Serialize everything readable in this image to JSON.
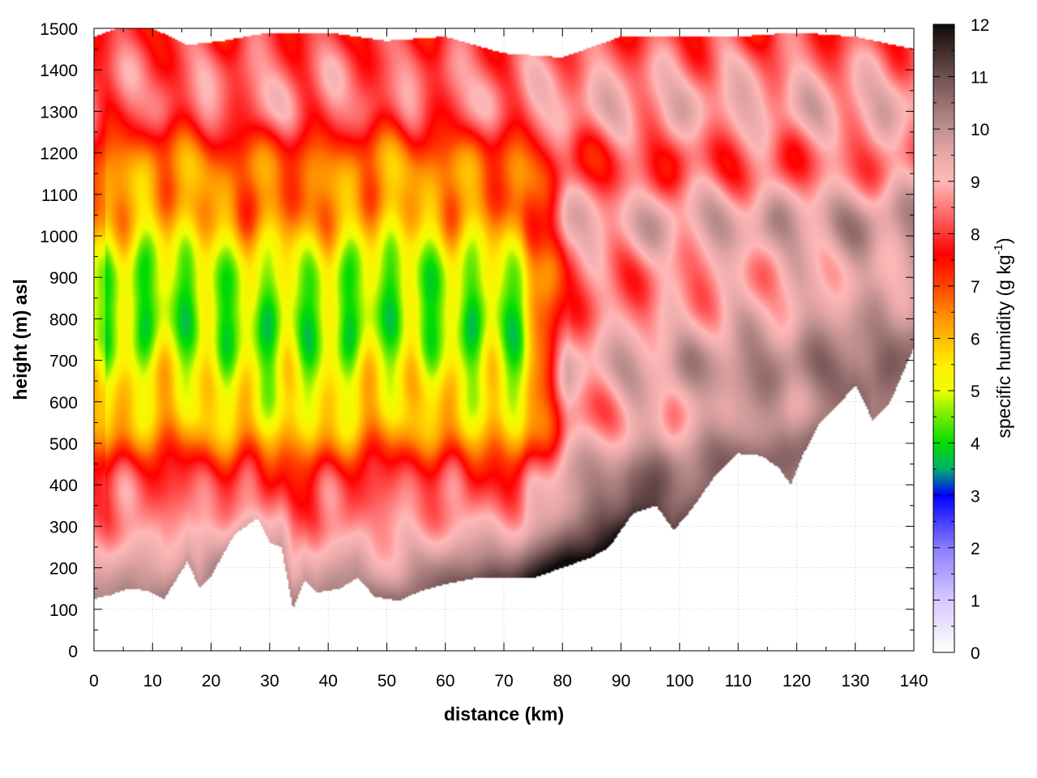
{
  "chart_data": {
    "type": "heatmap",
    "title": "",
    "xlabel": "distance (km)",
    "ylabel": "height (m) asl",
    "xlim": [
      0,
      140
    ],
    "ylim": [
      0,
      1500
    ],
    "x_ticks": [
      "0",
      "10",
      "20",
      "30",
      "40",
      "50",
      "60",
      "70",
      "80",
      "90",
      "100",
      "110",
      "120",
      "130",
      "140"
    ],
    "y_ticks": [
      "0",
      "100",
      "200",
      "300",
      "400",
      "500",
      "600",
      "700",
      "800",
      "900",
      "1000",
      "1100",
      "1200",
      "1300",
      "1400",
      "1500"
    ],
    "grid": true,
    "colorbar": {
      "label": "specific humidity (g kg",
      "label_exponent": "-1",
      "label_close": ")",
      "range": [
        0,
        12
      ],
      "ticks": [
        "0",
        "1",
        "2",
        "3",
        "4",
        "5",
        "6",
        "7",
        "8",
        "9",
        "10",
        "11",
        "12"
      ],
      "colormap": [
        {
          "v": 0,
          "color": "#ffffff"
        },
        {
          "v": 1,
          "color": "#d8c8ff"
        },
        {
          "v": 2,
          "color": "#8c7cff"
        },
        {
          "v": 3,
          "color": "#0000ff"
        },
        {
          "v": 3.5,
          "color": "#00b070"
        },
        {
          "v": 4,
          "color": "#00dd00"
        },
        {
          "v": 4.6,
          "color": "#88ee00"
        },
        {
          "v": 5,
          "color": "#eeff00"
        },
        {
          "v": 5.5,
          "color": "#ffee00"
        },
        {
          "v": 6,
          "color": "#ffbb00"
        },
        {
          "v": 6.5,
          "color": "#ff8800"
        },
        {
          "v": 7,
          "color": "#ff4400"
        },
        {
          "v": 7.6,
          "color": "#ff0000"
        },
        {
          "v": 8.3,
          "color": "#ff6060"
        },
        {
          "v": 9,
          "color": "#ffb8b8"
        },
        {
          "v": 9.5,
          "color": "#e8a8a8"
        },
        {
          "v": 10,
          "color": "#c09090"
        },
        {
          "v": 11,
          "color": "#705050"
        },
        {
          "v": 12,
          "color": "#100a0a"
        }
      ]
    },
    "terrain_height_m": [
      [
        0,
        125
      ],
      [
        3,
        135
      ],
      [
        6,
        150
      ],
      [
        9,
        145
      ],
      [
        12,
        125
      ],
      [
        14,
        170
      ],
      [
        16,
        215
      ],
      [
        18,
        150
      ],
      [
        20,
        180
      ],
      [
        22,
        230
      ],
      [
        24,
        280
      ],
      [
        26,
        300
      ],
      [
        28,
        320
      ],
      [
        30,
        260
      ],
      [
        32,
        250
      ],
      [
        34,
        100
      ],
      [
        36,
        170
      ],
      [
        38,
        140
      ],
      [
        42,
        150
      ],
      [
        45,
        175
      ],
      [
        48,
        130
      ],
      [
        52,
        120
      ],
      [
        56,
        145
      ],
      [
        60,
        160
      ],
      [
        65,
        175
      ],
      [
        70,
        175
      ],
      [
        75,
        175
      ],
      [
        80,
        200
      ],
      [
        85,
        225
      ],
      [
        88,
        250
      ],
      [
        92,
        330
      ],
      [
        96,
        350
      ],
      [
        99,
        290
      ],
      [
        102,
        340
      ],
      [
        106,
        420
      ],
      [
        110,
        475
      ],
      [
        114,
        470
      ],
      [
        117,
        440
      ],
      [
        119,
        400
      ],
      [
        121,
        470
      ],
      [
        124,
        550
      ],
      [
        127,
        590
      ],
      [
        130,
        640
      ],
      [
        133,
        555
      ],
      [
        136,
        600
      ],
      [
        140,
        730
      ]
    ],
    "profile_top_height_m": [
      [
        0,
        1480
      ],
      [
        4,
        1500
      ],
      [
        10,
        1500
      ],
      [
        16,
        1460
      ],
      [
        22,
        1470
      ],
      [
        30,
        1490
      ],
      [
        40,
        1490
      ],
      [
        50,
        1470
      ],
      [
        60,
        1480
      ],
      [
        70,
        1440
      ],
      [
        80,
        1430
      ],
      [
        90,
        1480
      ],
      [
        100,
        1480
      ],
      [
        110,
        1480
      ],
      [
        120,
        1490
      ],
      [
        130,
        1480
      ],
      [
        140,
        1450
      ]
    ],
    "humidity_structure": {
      "moist_boundary_layer_g_kg": 10.5,
      "maximum_g_kg": 12,
      "dry_core_minimum_g_kg": 4,
      "dry_core_extent_km": [
        0,
        75
      ],
      "dry_core_height_m": [
        600,
        1000
      ],
      "upper_layer_g_kg": 8.5
    }
  }
}
